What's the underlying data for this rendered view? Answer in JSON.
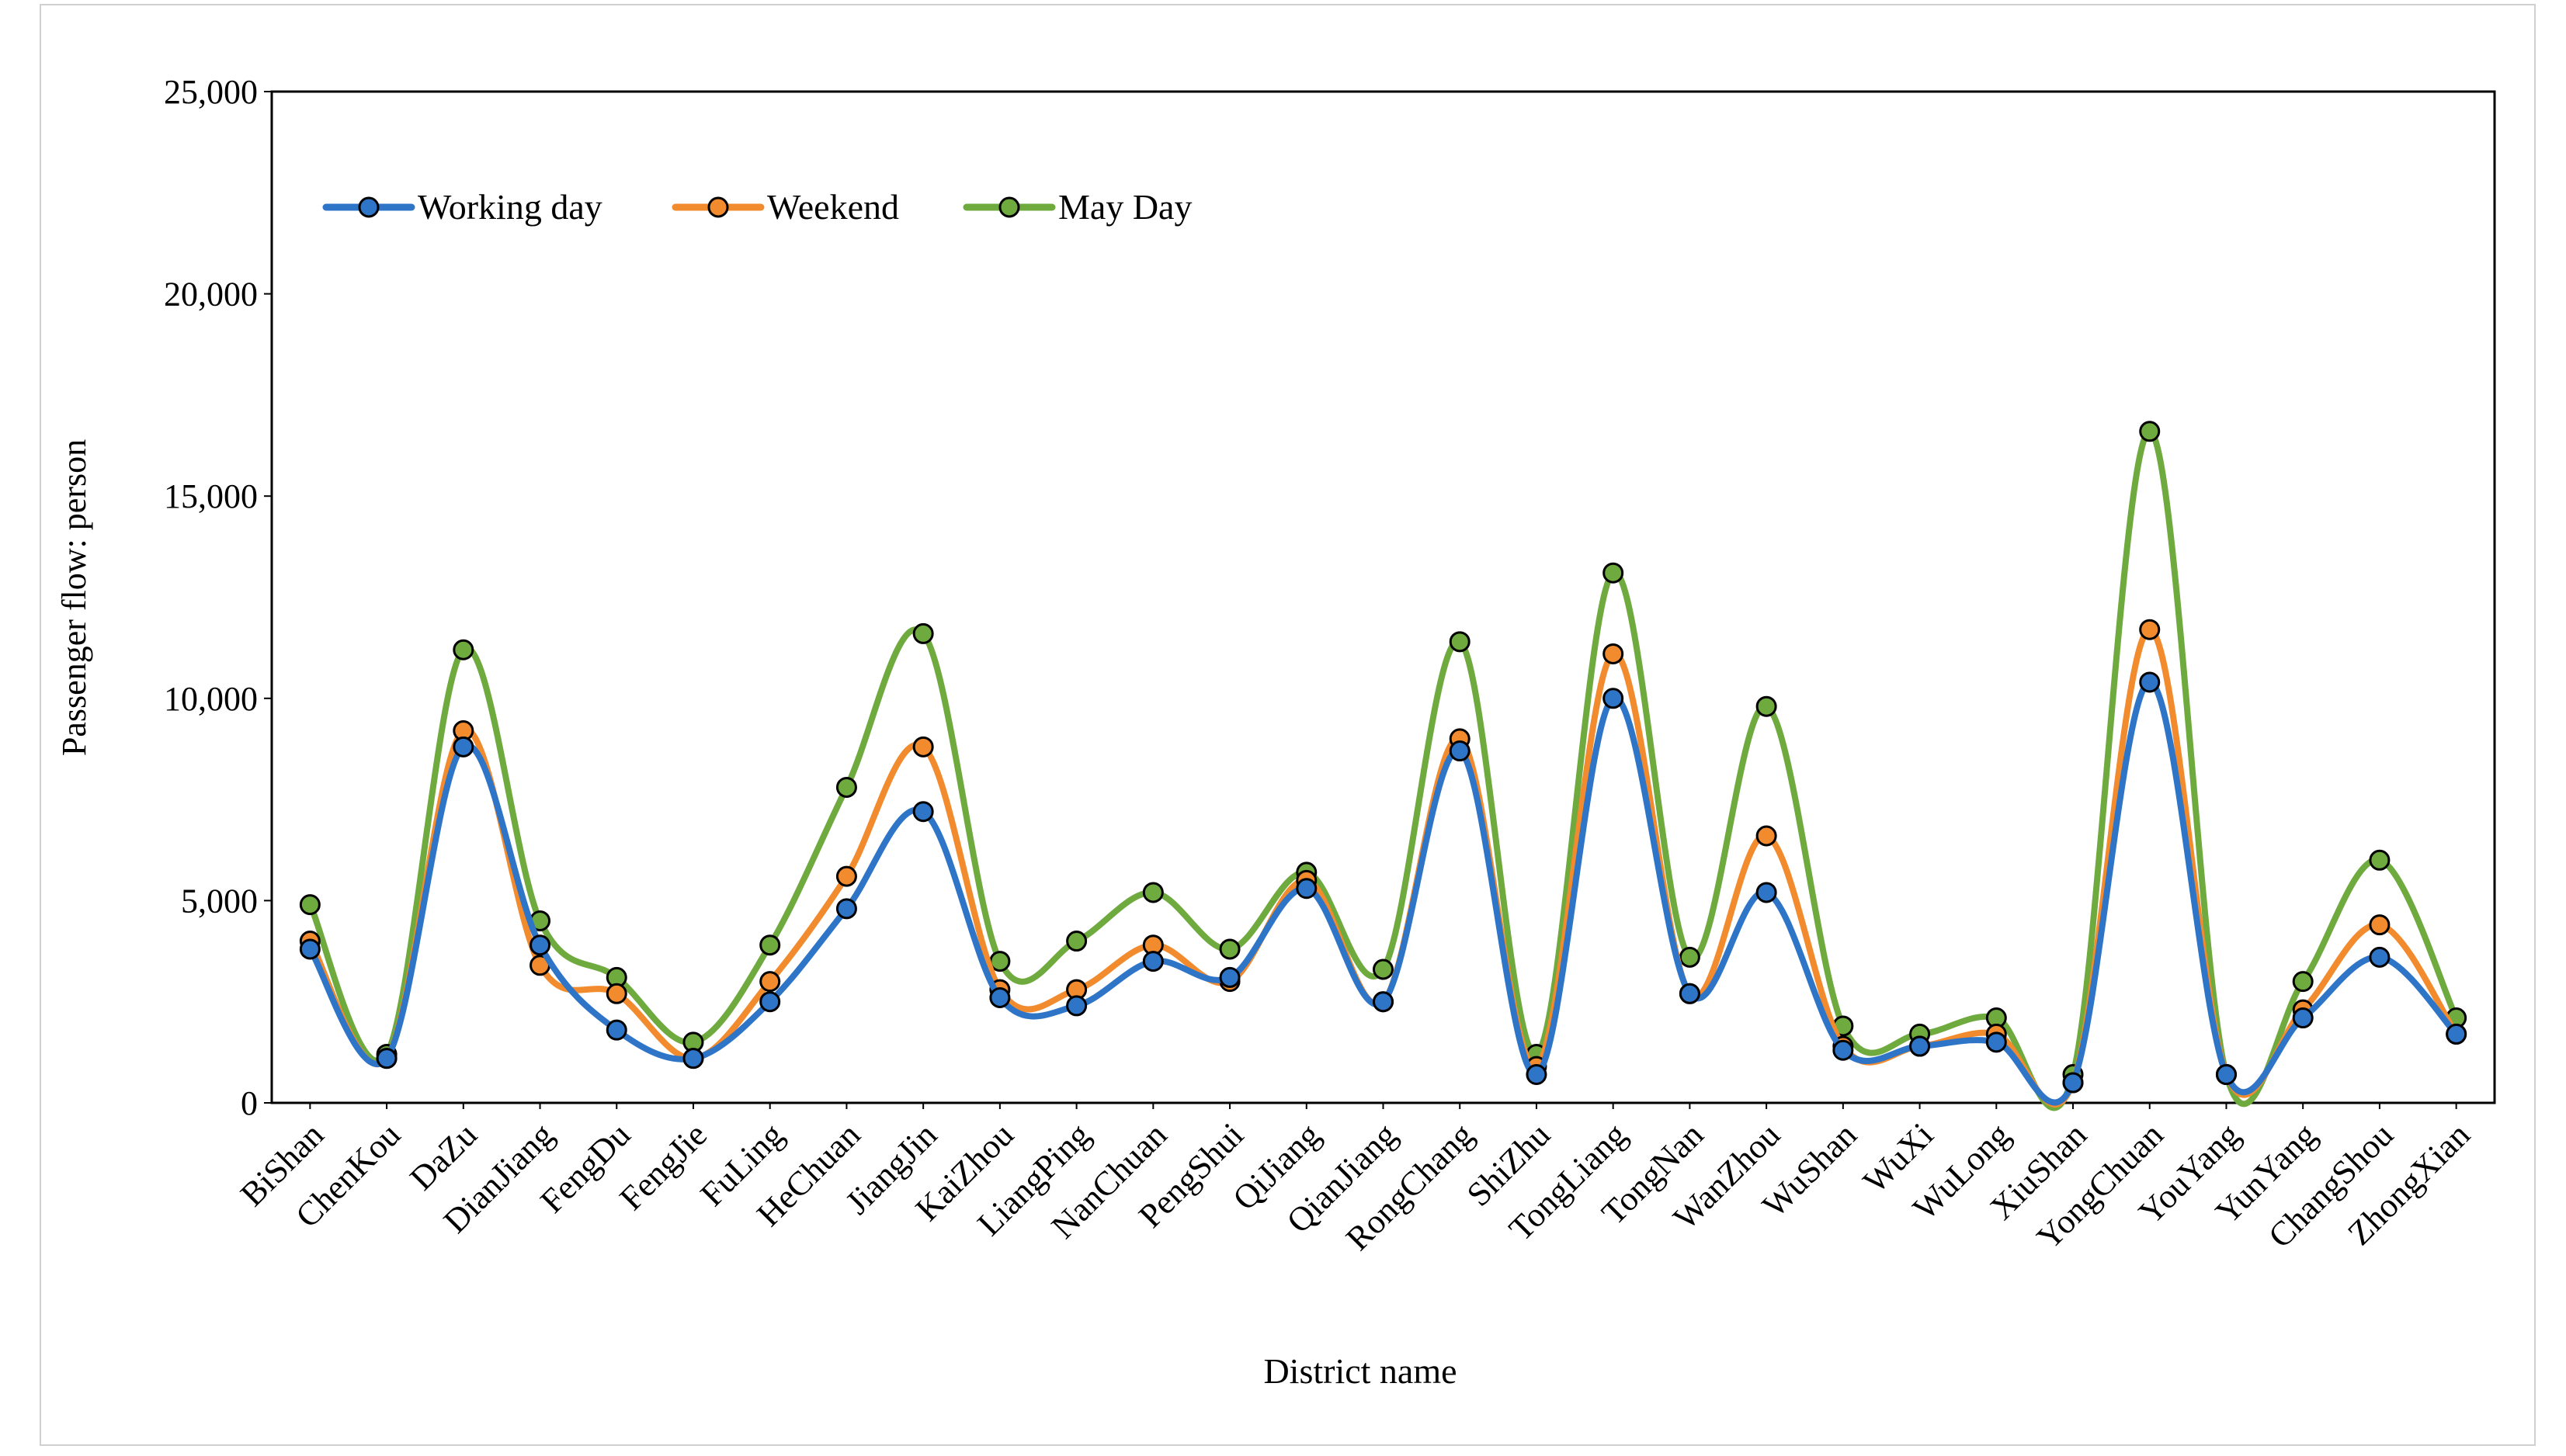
{
  "colors": {
    "working_day": "#2E75C8",
    "weekend": "#F28A2E",
    "may_day": "#6FAA3E"
  },
  "chart_data": {
    "type": "line",
    "title": "",
    "xlabel": "District name",
    "ylabel": "Passenger flow: person",
    "ylim": [
      0,
      25000
    ],
    "yticks": [
      0,
      5000,
      10000,
      15000,
      20000,
      25000
    ],
    "ytick_labels": [
      "0",
      "5,000",
      "10,000",
      "15,000",
      "20,000",
      "25,000"
    ],
    "grid": false,
    "legend_position": "top-left",
    "categories": [
      "BiShan",
      "ChenKou",
      "DaZu",
      "DianJiang",
      "FengDu",
      "FengJie",
      "FuLing",
      "HeChuan",
      "JiangJin",
      "KaiZhou",
      "LiangPing",
      "NanChuan",
      "PengShui",
      "QiJiang",
      "QianJiang",
      "RongChang",
      "ShiZhu",
      "TongLiang",
      "TongNan",
      "WanZhou",
      "WuShan",
      "WuXi",
      "WuLong",
      "XiuShan",
      "YongChuan",
      "YouYang",
      "YunYang",
      "ChangShou",
      "ZhongXian"
    ],
    "series": [
      {
        "name": "Working day",
        "color_key": "working_day",
        "values": [
          3800,
          1100,
          8800,
          3900,
          1800,
          1100,
          2500,
          4800,
          7200,
          2600,
          2400,
          3500,
          3100,
          5300,
          2500,
          8700,
          700,
          10000,
          2700,
          5200,
          1300,
          1400,
          1500,
          500,
          10400,
          700,
          2100,
          3600,
          1700
        ]
      },
      {
        "name": "Weekend",
        "color_key": "weekend",
        "values": [
          4000,
          1100,
          9200,
          3400,
          2700,
          1100,
          3000,
          5600,
          8800,
          2800,
          2800,
          3900,
          3000,
          5500,
          2500,
          9000,
          900,
          11100,
          2700,
          6600,
          1400,
          1400,
          1700,
          500,
          11700,
          700,
          2300,
          4400,
          1700
        ]
      },
      {
        "name": "May Day",
        "color_key": "may_day",
        "values": [
          4900,
          1200,
          11200,
          4500,
          3100,
          1500,
          3900,
          7800,
          11600,
          3500,
          4000,
          5200,
          3800,
          5700,
          3300,
          11400,
          1200,
          13100,
          3600,
          9800,
          1900,
          1700,
          2100,
          700,
          16600,
          700,
          3000,
          6000,
          2100
        ]
      }
    ]
  }
}
